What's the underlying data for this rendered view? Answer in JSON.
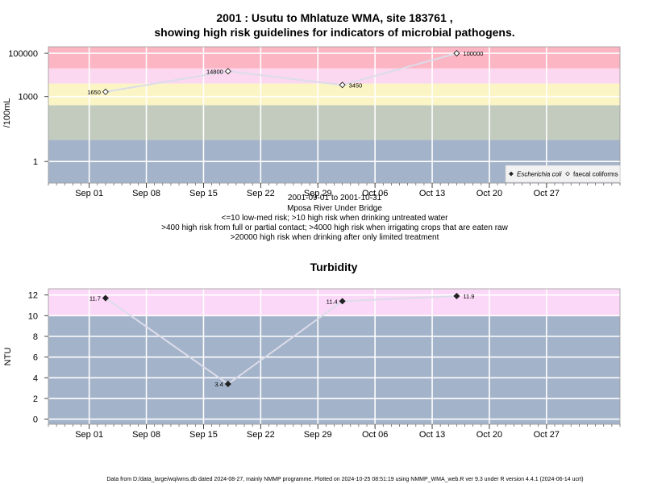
{
  "page": {
    "title_line1": "2001 : Usutu to Mhlatuze WMA, site 183761 ,",
    "title_line2": "showing high risk guidelines for indicators of microbial pathogens.",
    "info_lines": [
      "2001-09-01 to 2001-10-31",
      "Mposa River Under Bridge",
      "<=10 low-med risk; >10 high risk when drinking untreated water",
      ">400 high risk from full or partial contact; >4000 high risk when irrigating crops that are eaten raw",
      ">20000 high risk when drinking after only limited treatment"
    ],
    "footer": "Data from D:/data_large/wq/wms.db dated 2024-08-27, mainly NMMP programme. Plotted on 2024-10-25 08:51:19 using NMMP_WMA_web.R ver 9.3 under R version 4.4.1 (2024-06-14 ucrt)"
  },
  "chart_data": [
    {
      "type": "line",
      "title": "2001 : Usutu to Mhlatuze WMA, site 183761 , showing high risk guidelines for indicators of microbial pathogens.",
      "ylabel": "/100mL",
      "yscale": "log",
      "ylim": [
        0.1,
        200000
      ],
      "xlim": [
        "2001-08-27",
        "2001-11-05"
      ],
      "x_tick_labels": [
        "Sep 01",
        "Sep 08",
        "Sep 15",
        "Sep 22",
        "Sep 29",
        "Oct 06",
        "Oct 13",
        "Oct 20",
        "Oct 27"
      ],
      "x_tick_dates": [
        "2001-09-01",
        "2001-09-08",
        "2001-09-15",
        "2001-09-22",
        "2001-09-29",
        "2001-10-06",
        "2001-10-13",
        "2001-10-20",
        "2001-10-27"
      ],
      "y_tick_labels": [
        "1",
        "1000",
        "100000"
      ],
      "y_tick_values": [
        1,
        1000,
        100000
      ],
      "grid": true,
      "bands": [
        {
          "from": 0.1,
          "to": 10,
          "color": "#a3b3c9"
        },
        {
          "from": 10,
          "to": 400,
          "color": "#c3cbbf"
        },
        {
          "from": 400,
          "to": 4000,
          "color": "#fbf5c5"
        },
        {
          "from": 4000,
          "to": 20000,
          "color": "#fbd8ef"
        },
        {
          "from": 20000,
          "to": 200000,
          "color": "#fbb5c3"
        }
      ],
      "series": [
        {
          "name": "faecal coliforms",
          "marker": "open-diamond",
          "line_color": "#dcdcea",
          "points": [
            {
              "x": "2001-09-03",
              "y": 1650,
              "label": "1650",
              "label_side": "left"
            },
            {
              "x": "2001-09-18",
              "y": 14800,
              "label": "14800",
              "label_side": "left"
            },
            {
              "x": "2001-10-02",
              "y": 3450,
              "label": "3450",
              "label_side": "right"
            },
            {
              "x": "2001-10-16",
              "y": 100000,
              "label": "100000",
              "label_side": "right"
            }
          ]
        }
      ],
      "legend": {
        "placement": "bottom-right",
        "entries": [
          {
            "label": "Escherichia coli",
            "marker": "filled-diamond",
            "italic": true
          },
          {
            "label": "faecal coliforms",
            "marker": "open-diamond",
            "italic": false
          }
        ]
      }
    },
    {
      "type": "line",
      "title": "Turbidity",
      "ylabel": "NTU",
      "ylim": [
        -0.5,
        12.6
      ],
      "xlim": [
        "2001-08-27",
        "2001-11-05"
      ],
      "x_tick_labels": [
        "Sep 01",
        "Sep 08",
        "Sep 15",
        "Sep 22",
        "Sep 29",
        "Oct 06",
        "Oct 13",
        "Oct 20",
        "Oct 27"
      ],
      "x_tick_dates": [
        "2001-09-01",
        "2001-09-08",
        "2001-09-15",
        "2001-09-22",
        "2001-09-29",
        "2001-10-06",
        "2001-10-13",
        "2001-10-20",
        "2001-10-27"
      ],
      "y_tick_labels": [
        "0",
        "2",
        "4",
        "6",
        "8",
        "10",
        "12"
      ],
      "y_tick_values": [
        0,
        2,
        4,
        6,
        8,
        10,
        12
      ],
      "grid": true,
      "bands": [
        {
          "from": -0.5,
          "to": 10,
          "color": "#a3b3c9"
        },
        {
          "from": 10,
          "to": 12.6,
          "color": "#fbd8f7"
        }
      ],
      "series": [
        {
          "name": "",
          "marker": "filled-diamond",
          "line_color": "#dcdcea",
          "points": [
            {
              "x": "2001-09-03",
              "y": 11.7,
              "label": "11.7",
              "label_side": "left"
            },
            {
              "x": "2001-09-18",
              "y": 3.4,
              "label": "3.4",
              "label_side": "left"
            },
            {
              "x": "2001-10-02",
              "y": 11.4,
              "label": "11.4",
              "label_side": "left"
            },
            {
              "x": "2001-10-16",
              "y": 11.9,
              "label": "11.9",
              "label_side": "right"
            }
          ]
        }
      ]
    }
  ]
}
